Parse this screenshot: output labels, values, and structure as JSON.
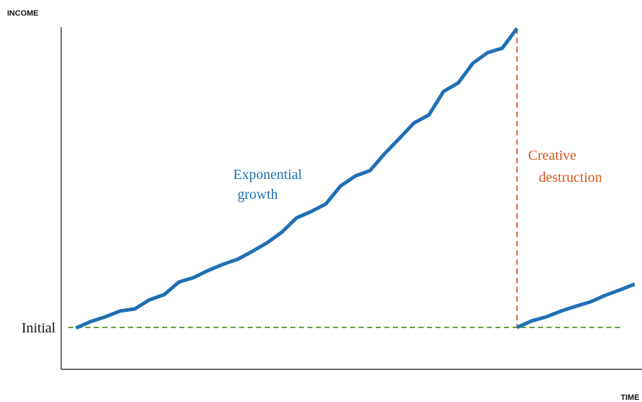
{
  "chart_data": {
    "type": "line",
    "y_label": "INCOME",
    "x_label": "TIME",
    "xlim": [
      -1,
      38.5
    ],
    "ylim": [
      0,
      100
    ],
    "yticks": [
      {
        "value": 12.3,
        "label": "Initial"
      }
    ],
    "tick_line_color": "#5a9a2a",
    "x": [
      0,
      1,
      2,
      3,
      4,
      5,
      6,
      7,
      8,
      9,
      10,
      11,
      12,
      13,
      14,
      15,
      16,
      17,
      18,
      19,
      20,
      21,
      22,
      23,
      24,
      25,
      26,
      27,
      28,
      29,
      30,
      null,
      30,
      31,
      32,
      33,
      34,
      35,
      36,
      37,
      38
    ],
    "series": [
      {
        "color": "#1f6fb5",
        "values": [
          12.1,
          14.0,
          15.4,
          17.1,
          17.7,
          20.4,
          21.9,
          25.6,
          26.9,
          29.0,
          30.8,
          32.3,
          34.6,
          37.1,
          40.2,
          44.4,
          46.3,
          48.5,
          53.8,
          56.7,
          58.3,
          63.3,
          67.7,
          72.3,
          74.6,
          81.5,
          84.0,
          89.8,
          92.9,
          94.2,
          100,
          null,
          12.3,
          14.2,
          15.4,
          17.1,
          18.5,
          19.8,
          21.7,
          23.3,
          25.0
        ]
      }
    ],
    "annotations": [
      {
        "lines": [
          "Exponential",
          "growth"
        ],
        "color": "#1f6fb5"
      },
      {
        "lines": [
          "Creative",
          "destruction"
        ],
        "color": "#d9541e"
      }
    ]
  }
}
